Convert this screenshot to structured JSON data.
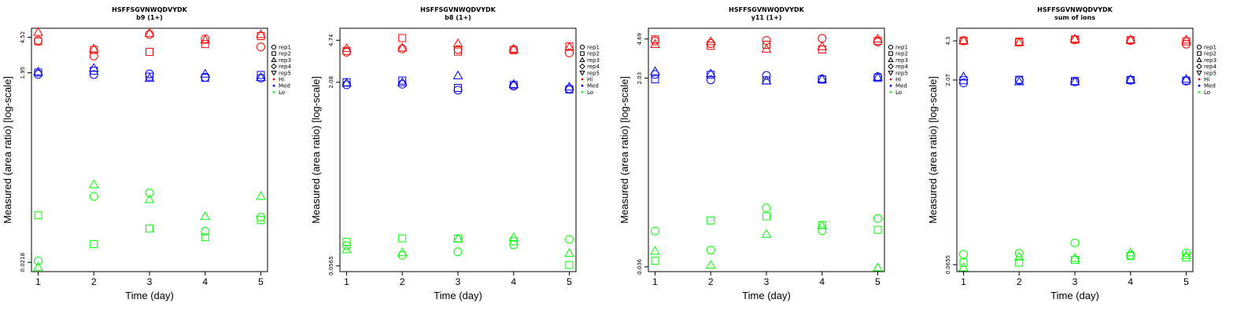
{
  "colors": {
    "Hi": "#ff0000",
    "Med": "#0000ff",
    "Lo": "#00ff00"
  },
  "legend": {
    "replicates": [
      {
        "label": "rep1",
        "shape": "circle"
      },
      {
        "label": "rep2",
        "shape": "square"
      },
      {
        "label": "rep3",
        "shape": "triangle-up"
      },
      {
        "label": "rep4",
        "shape": "diamond"
      },
      {
        "label": "rep5",
        "shape": "triangle-down"
      }
    ],
    "groups": [
      {
        "label": "Hi",
        "color": "#ff0000"
      },
      {
        "label": "Med",
        "color": "#0000ff"
      },
      {
        "label": "Lo",
        "color": "#00ff00"
      }
    ]
  },
  "chart_data": [
    {
      "type": "scatter",
      "title": "HSFFSGVNWQDVYDK",
      "subtitle": "b9 (1+)",
      "xlabel": "Time (day)",
      "ylabel": "Measured (area ratio) [log-scale]",
      "log_y": true,
      "x_ticks": [
        1,
        2,
        3,
        4,
        5
      ],
      "y_ticks": [
        "4.52",
        "1.95",
        "0.0218"
      ],
      "ylim": [
        0.0175,
        5.6
      ],
      "legend_position": "right",
      "series": [
        {
          "name": "Hi",
          "rep": "rep1",
          "x": [
            1,
            2,
            3,
            4,
            5
          ],
          "y": [
            4.2,
            2.9,
            4.85,
            4.35,
            3.6
          ]
        },
        {
          "name": "Hi",
          "rep": "rep2",
          "x": [
            1,
            2,
            3,
            4,
            5
          ],
          "y": [
            4.1,
            3.35,
            3.2,
            3.85,
            4.65
          ]
        },
        {
          "name": "Hi",
          "rep": "rep3",
          "x": [
            1,
            2,
            3,
            4,
            5
          ],
          "y": [
            5.1,
            3.45,
            5.0,
            4.25,
            4.85
          ]
        },
        {
          "name": "Med",
          "rep": "rep1",
          "x": [
            1,
            2,
            3,
            4,
            5
          ],
          "y": [
            1.88,
            1.87,
            1.9,
            1.75,
            1.72
          ]
        },
        {
          "name": "Med",
          "rep": "rep2",
          "x": [
            1,
            2,
            3,
            4,
            5
          ],
          "y": [
            1.96,
            2.05,
            1.78,
            1.73,
            1.85
          ]
        },
        {
          "name": "Med",
          "rep": "rep3",
          "x": [
            1,
            2,
            3,
            4,
            5
          ],
          "y": [
            2.0,
            2.18,
            1.72,
            1.9,
            1.75
          ]
        },
        {
          "name": "Lo",
          "rep": "rep1",
          "x": [
            1,
            2,
            3,
            4,
            5
          ],
          "y": [
            0.0225,
            0.104,
            0.113,
            0.0455,
            0.0635
          ]
        },
        {
          "name": "Lo",
          "rep": "rep2",
          "x": [
            1,
            2,
            3,
            4,
            5
          ],
          "y": [
            0.0665,
            0.0335,
            0.0485,
            0.0395,
            0.0595
          ]
        },
        {
          "name": "Lo",
          "rep": "rep3",
          "x": [
            1,
            2,
            3,
            4,
            5
          ],
          "y": [
            0.0195,
            0.138,
            0.097,
            0.065,
            0.105
          ]
        }
      ]
    },
    {
      "type": "scatter",
      "title": "HSFFSGVNWQDVYDK",
      "subtitle": "b8 (1+)",
      "xlabel": "Time (day)",
      "ylabel": "Measured (area ratio) [log-scale]",
      "log_y": true,
      "x_ticks": [
        1,
        2,
        3,
        4,
        5
      ],
      "y_ticks": [
        "4.74",
        "2.08",
        "0.0565"
      ],
      "ylim": [
        0.0505,
        6.0
      ],
      "legend_position": "right",
      "series": [
        {
          "name": "Hi",
          "rep": "rep1",
          "x": [
            1,
            2,
            3,
            4,
            5
          ],
          "y": [
            3.75,
            4.0,
            3.95,
            3.95,
            3.7
          ]
        },
        {
          "name": "Hi",
          "rep": "rep2",
          "x": [
            1,
            2,
            3,
            4,
            5
          ],
          "y": [
            3.85,
            4.95,
            3.8,
            3.9,
            4.2
          ]
        },
        {
          "name": "Hi",
          "rep": "rep3",
          "x": [
            1,
            2,
            3,
            4,
            5
          ],
          "y": [
            4.05,
            4.1,
            4.45,
            4.0,
            4.15
          ]
        },
        {
          "name": "Med",
          "rep": "rep1",
          "x": [
            1,
            2,
            3,
            4,
            5
          ],
          "y": [
            1.98,
            2.0,
            1.78,
            1.93,
            1.83
          ]
        },
        {
          "name": "Med",
          "rep": "rep2",
          "x": [
            1,
            2,
            3,
            4,
            5
          ],
          "y": [
            2.08,
            2.15,
            1.86,
            1.97,
            1.8
          ]
        },
        {
          "name": "Med",
          "rep": "rep3",
          "x": [
            1,
            2,
            3,
            4,
            5
          ],
          "y": [
            2.05,
            2.07,
            2.37,
            2.0,
            1.9
          ]
        },
        {
          "name": "Lo",
          "rep": "rep1",
          "x": [
            1,
            2,
            3,
            4,
            5
          ],
          "y": [
            0.084,
            0.0695,
            0.0745,
            0.0855,
            0.095
          ]
        },
        {
          "name": "Lo",
          "rep": "rep2",
          "x": [
            1,
            2,
            3,
            4,
            5
          ],
          "y": [
            0.0905,
            0.097,
            0.0965,
            0.0915,
            0.0575
          ]
        },
        {
          "name": "Lo",
          "rep": "rep3",
          "x": [
            1,
            2,
            3,
            4,
            5
          ],
          "y": [
            0.078,
            0.0735,
            0.0965,
            0.099,
            0.0725
          ]
        }
      ]
    },
    {
      "type": "scatter",
      "title": "HSFFSGVNWQDVYDK",
      "subtitle": "y11 (1+)",
      "xlabel": "Time (day)",
      "ylabel": "Measured (area ratio) [log-scale]",
      "log_y": true,
      "x_ticks": [
        1,
        2,
        3,
        4,
        5
      ],
      "y_ticks": [
        "4.69",
        "2.03",
        "0.036"
      ],
      "ylim": [
        0.0325,
        5.9
      ],
      "legend_position": "right",
      "series": [
        {
          "name": "Hi",
          "rep": "rep1",
          "x": [
            1,
            2,
            3,
            4,
            5
          ],
          "y": [
            4.5,
            4.25,
            4.55,
            4.75,
            4.4
          ]
        },
        {
          "name": "Hi",
          "rep": "rep2",
          "x": [
            1,
            2,
            3,
            4,
            5
          ],
          "y": [
            4.65,
            4.05,
            4.15,
            3.75,
            4.5
          ]
        },
        {
          "name": "Hi",
          "rep": "rep3",
          "x": [
            1,
            2,
            3,
            4,
            5
          ],
          "y": [
            4.2,
            4.45,
            3.8,
            4.0,
            4.7
          ]
        },
        {
          "name": "Med",
          "rep": "rep1",
          "x": [
            1,
            2,
            3,
            4,
            5
          ],
          "y": [
            2.2,
            1.96,
            2.15,
            2.0,
            2.1
          ]
        },
        {
          "name": "Med",
          "rep": "rep2",
          "x": [
            1,
            2,
            3,
            4,
            5
          ],
          "y": [
            1.98,
            2.18,
            1.94,
            1.97,
            2.04
          ]
        },
        {
          "name": "Med",
          "rep": "rep3",
          "x": [
            1,
            2,
            3,
            4,
            5
          ],
          "y": [
            2.35,
            2.24,
            1.92,
            1.99,
            2.07
          ]
        },
        {
          "name": "Lo",
          "rep": "rep1",
          "x": [
            1,
            2,
            3,
            4,
            5
          ],
          "y": [
            0.0775,
            0.0515,
            0.127,
            0.078,
            0.101
          ]
        },
        {
          "name": "Lo",
          "rep": "rep2",
          "x": [
            1,
            2,
            3,
            4,
            5
          ],
          "y": [
            0.041,
            0.097,
            0.106,
            0.0875,
            0.0795
          ]
        },
        {
          "name": "Lo",
          "rep": "rep3",
          "x": [
            1,
            2,
            3,
            4,
            5
          ],
          "y": [
            0.0505,
            0.0375,
            0.0725,
            0.087,
            0.0355
          ]
        }
      ]
    },
    {
      "type": "scatter",
      "title": "HSFFSGVNWQDVYDK",
      "subtitle": "sum of ions",
      "xlabel": "Time (day)",
      "ylabel": "Measured (area ratio) [log-scale]",
      "log_y": true,
      "x_ticks": [
        1,
        2,
        3,
        4,
        5
      ],
      "y_ticks": [
        "4.3",
        "2.07",
        "0.0655"
      ],
      "ylim": [
        0.0575,
        5.45
      ],
      "legend_position": "right",
      "series": [
        {
          "name": "Hi",
          "rep": "rep1",
          "x": [
            1,
            2,
            3,
            4,
            5
          ],
          "y": [
            4.3,
            4.2,
            4.38,
            4.33,
            4.05
          ]
        },
        {
          "name": "Hi",
          "rep": "rep2",
          "x": [
            1,
            2,
            3,
            4,
            5
          ],
          "y": [
            4.32,
            4.25,
            4.42,
            4.36,
            4.27
          ]
        },
        {
          "name": "Hi",
          "rep": "rep3",
          "x": [
            1,
            2,
            3,
            4,
            5
          ],
          "y": [
            4.34,
            4.18,
            4.47,
            4.4,
            4.4
          ]
        },
        {
          "name": "Med",
          "rep": "rep1",
          "x": [
            1,
            2,
            3,
            4,
            5
          ],
          "y": [
            1.96,
            2.06,
            2.0,
            2.06,
            2.03
          ]
        },
        {
          "name": "Med",
          "rep": "rep2",
          "x": [
            1,
            2,
            3,
            4,
            5
          ],
          "y": [
            2.06,
            2.08,
            2.03,
            2.07,
            2.05
          ]
        },
        {
          "name": "Med",
          "rep": "rep3",
          "x": [
            1,
            2,
            3,
            4,
            5
          ],
          "y": [
            2.2,
            2.01,
            2.01,
            2.09,
            2.11
          ]
        },
        {
          "name": "Lo",
          "rep": "rep1",
          "x": [
            1,
            2,
            3,
            4,
            5
          ],
          "y": [
            0.0795,
            0.081,
            0.0985,
            0.078,
            0.0815
          ]
        },
        {
          "name": "Lo",
          "rep": "rep2",
          "x": [
            1,
            2,
            3,
            4,
            5
          ],
          "y": [
            0.068,
            0.068,
            0.0715,
            0.077,
            0.075
          ]
        },
        {
          "name": "Lo",
          "rep": "rep3",
          "x": [
            1,
            2,
            3,
            4,
            5
          ],
          "y": [
            0.062,
            0.076,
            0.074,
            0.082,
            0.078
          ]
        }
      ]
    }
  ]
}
